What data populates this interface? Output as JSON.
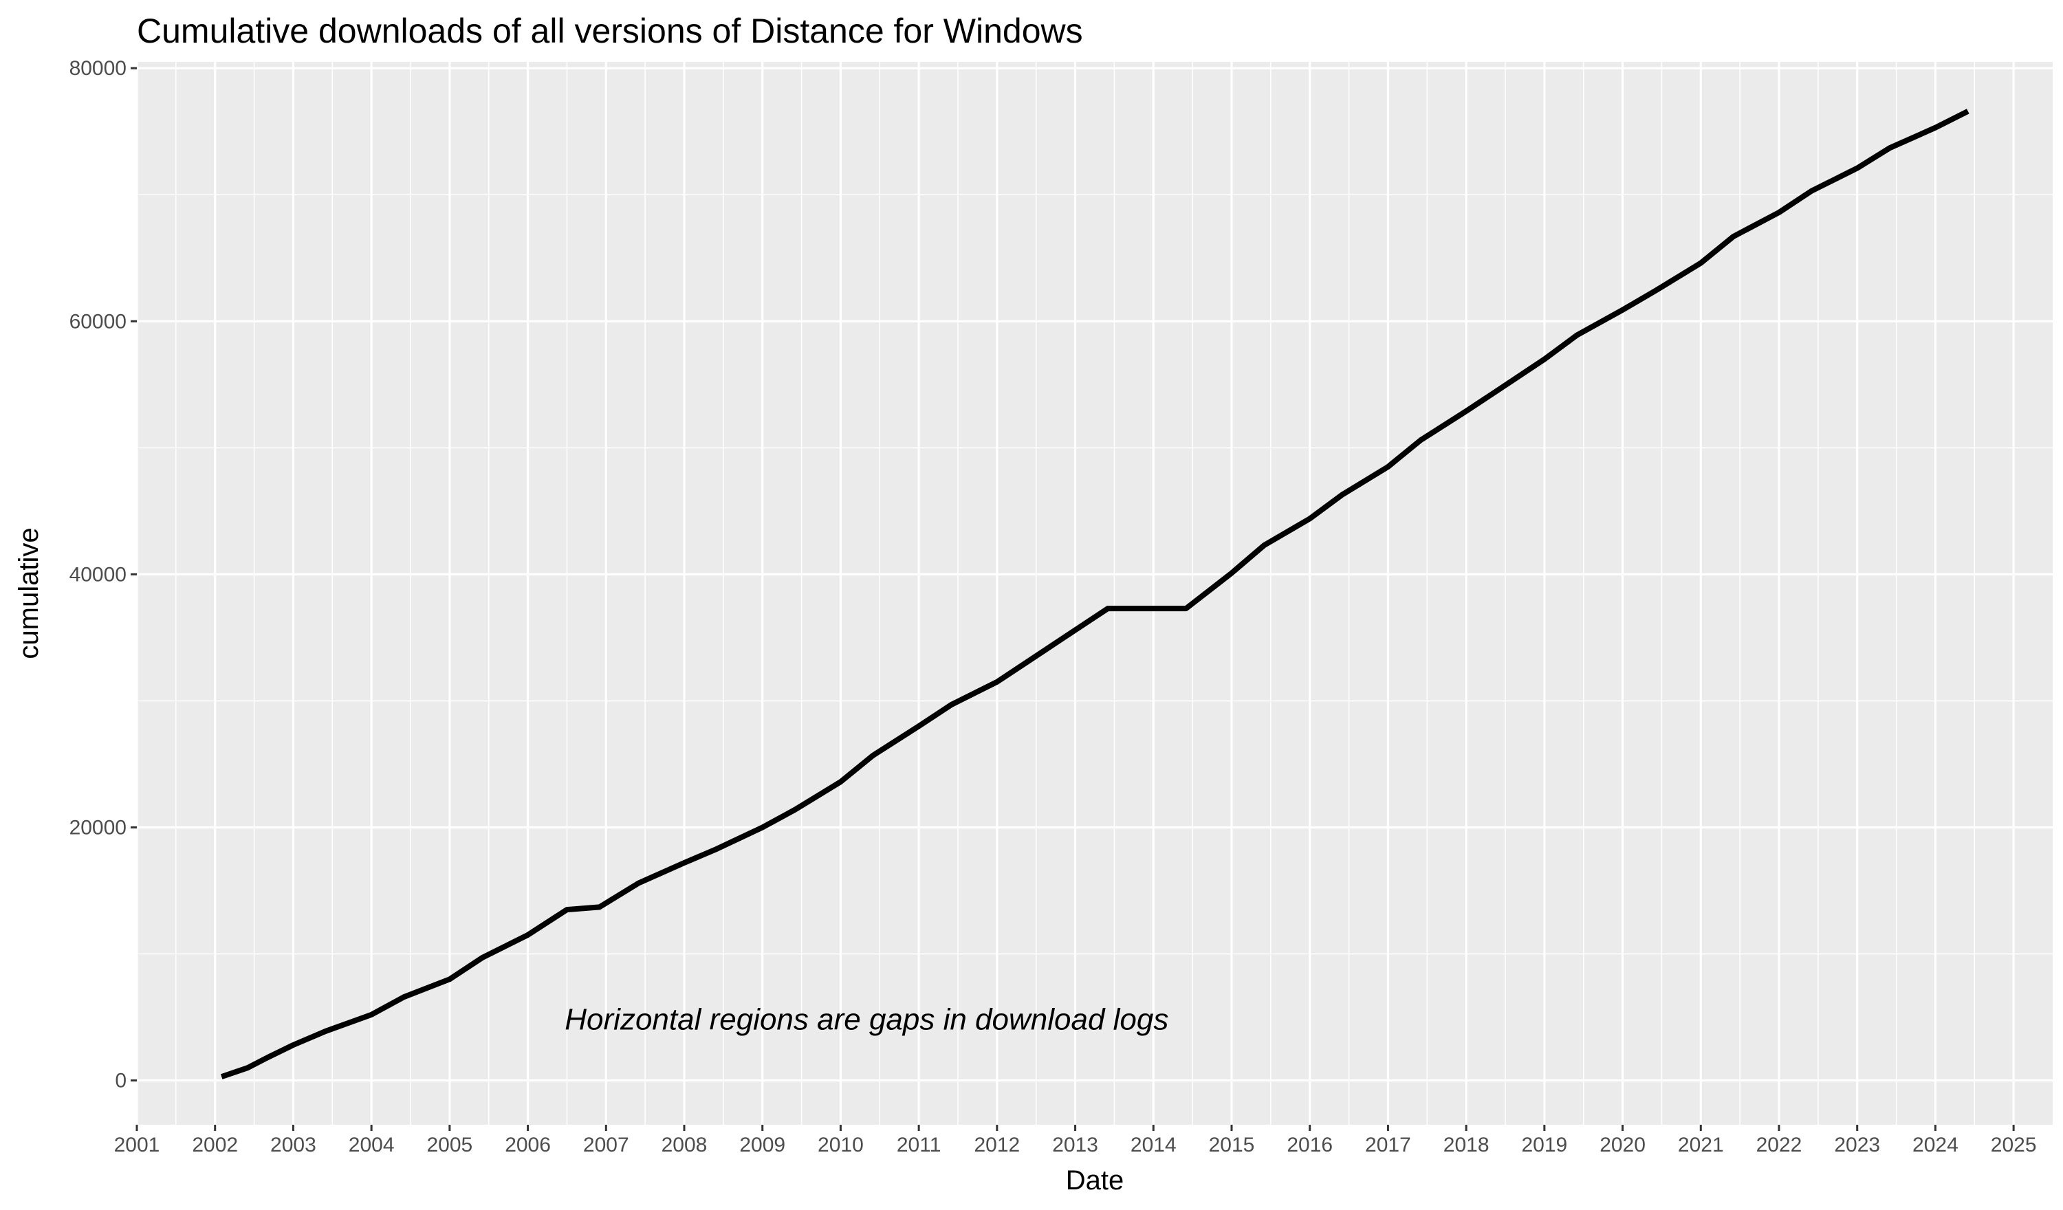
{
  "chart_data": {
    "type": "line",
    "title": "Cumulative downloads of all versions of Distance for Windows",
    "xlabel": "Date",
    "ylabel": "cumulative",
    "xlim": [
      "2001-01-01",
      "2025-07-01"
    ],
    "ylim": [
      -3500,
      80500
    ],
    "x_ticks": [
      "2001",
      "2002",
      "2003",
      "2004",
      "2005",
      "2006",
      "2007",
      "2008",
      "2009",
      "2010",
      "2011",
      "2012",
      "2013",
      "2014",
      "2015",
      "2016",
      "2017",
      "2018",
      "2019",
      "2020",
      "2021",
      "2022",
      "2023",
      "2024",
      "2025"
    ],
    "y_ticks": [
      0,
      20000,
      40000,
      60000,
      80000
    ],
    "grid": true,
    "line_color": "#000000",
    "panel_color": "#ebebeb",
    "annotation": {
      "text": "Horizontal regions are gaps in download logs",
      "x": "2010-05-01",
      "y": 4900
    },
    "series": [
      {
        "x": [
          "2002-02-01",
          "2002-06-01",
          "2002-09-01",
          "2003-01-01",
          "2003-06-01",
          "2004-01-01",
          "2004-06-01",
          "2005-01-01",
          "2005-06-01",
          "2006-01-01",
          "2006-07-01",
          "2006-12-01",
          "2007-06-01",
          "2008-01-01",
          "2008-06-01",
          "2009-01-01",
          "2009-06-01",
          "2010-01-01",
          "2010-06-01",
          "2011-01-01",
          "2011-06-01",
          "2012-01-01",
          "2012-06-01",
          "2013-01-01",
          "2013-06-01",
          "2014-06-01",
          "2015-01-01",
          "2015-06-01",
          "2016-01-01",
          "2016-06-01",
          "2017-01-01",
          "2017-06-01",
          "2018-01-01",
          "2018-06-01",
          "2019-01-01",
          "2019-06-01",
          "2020-01-01",
          "2020-06-01",
          "2021-01-01",
          "2021-06-01",
          "2022-01-01",
          "2022-06-01",
          "2023-01-01",
          "2023-06-01",
          "2024-01-01",
          "2024-06-01"
        ],
        "values": [
          300,
          1000,
          1800,
          2800,
          3900,
          5200,
          6600,
          8000,
          9700,
          11500,
          13500,
          13700,
          15600,
          17200,
          18300,
          20000,
          21400,
          23600,
          25700,
          28000,
          29700,
          31500,
          33200,
          35600,
          37300,
          37300,
          40100,
          42300,
          44400,
          46300,
          48500,
          50600,
          52900,
          54600,
          57000,
          58900,
          60900,
          62400,
          64600,
          66700,
          68600,
          70300,
          72100,
          73700,
          75300,
          76600
        ]
      }
    ]
  }
}
